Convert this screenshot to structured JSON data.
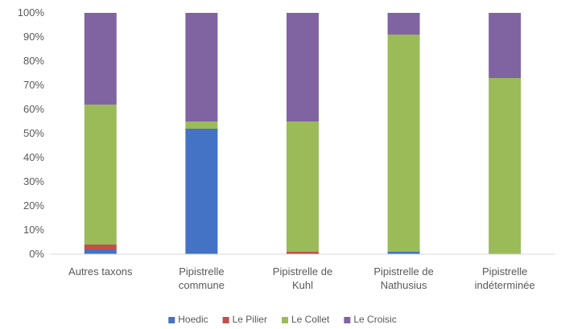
{
  "chart_data": {
    "type": "bar",
    "stacked": true,
    "percent": true,
    "categories": [
      [
        "Autres taxons"
      ],
      [
        "Pipistrelle",
        "commune"
      ],
      [
        "Pipistrelle de",
        "Kuhl"
      ],
      [
        "Pipistrelle de",
        "Nathusius"
      ],
      [
        "Pipistrelle",
        "indéterminée"
      ]
    ],
    "series": [
      {
        "name": "Hoedic",
        "color": "#4472c4",
        "values": [
          2,
          52,
          0,
          1,
          0
        ]
      },
      {
        "name": "Le Pilier",
        "color": "#c0504d",
        "values": [
          2,
          0,
          1,
          0,
          0
        ]
      },
      {
        "name": "Le Collet",
        "color": "#9bbb59",
        "values": [
          58,
          3,
          54,
          90,
          73
        ]
      },
      {
        "name": "Le Croisic",
        "color": "#8064a2",
        "values": [
          38,
          45,
          45,
          9,
          27
        ]
      }
    ],
    "yticks": [
      "0%",
      "10%",
      "20%",
      "30%",
      "40%",
      "50%",
      "60%",
      "70%",
      "80%",
      "90%",
      "100%"
    ],
    "ylim": [
      0,
      100
    ],
    "grid": false,
    "legend": "bottom"
  }
}
